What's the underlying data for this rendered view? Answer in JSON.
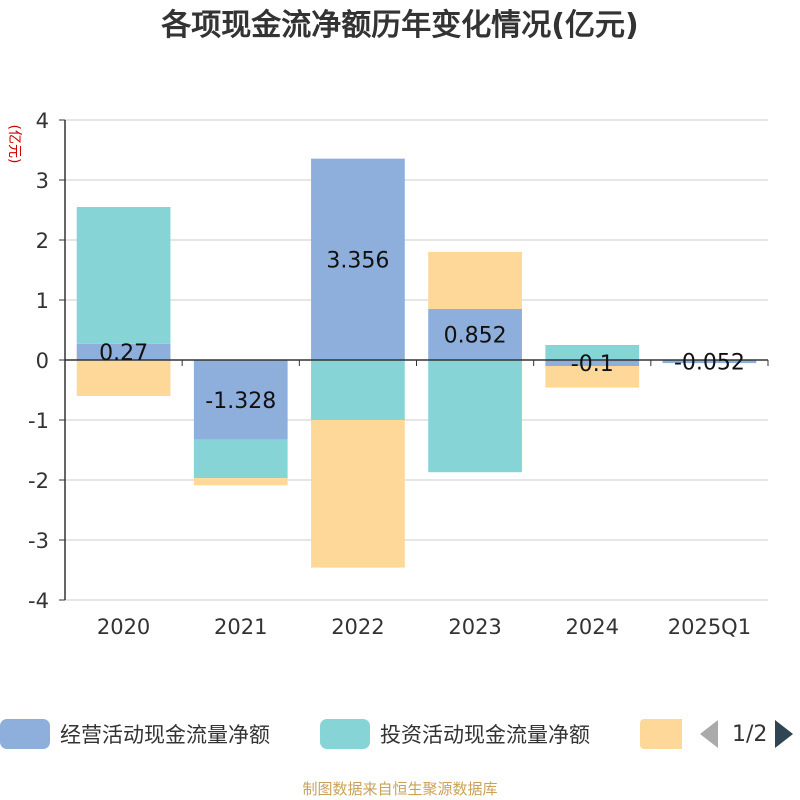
{
  "title": "各项现金流净额历年变化情况(亿元)",
  "source": "制图数据来自恒生聚源数据库",
  "colors": {
    "operating": "#8eaedb",
    "investing": "#86d4d6",
    "financing": "#fdd898"
  },
  "chart_data": {
    "type": "bar",
    "stacked": true,
    "title": "各项现金流净额历年变化情况(亿元)",
    "ylabel": "(亿元)",
    "ylim": [
      -4,
      4
    ],
    "yticks": [
      "4",
      "3",
      "2",
      "1",
      "0",
      "-1",
      "-2",
      "-3",
      "-4"
    ],
    "categories": [
      "2020",
      "2021",
      "2022",
      "2023",
      "2024",
      "2025Q1"
    ],
    "grid": true,
    "legend_position": "bottom",
    "series": [
      {
        "name": "经营活动现金流量净额",
        "values": [
          0.27,
          -1.328,
          3.356,
          0.852,
          -0.1,
          -0.052
        ],
        "labels": [
          "0.27",
          "-1.328",
          "3.356",
          "0.852",
          "-0.1",
          "-0.052"
        ]
      },
      {
        "name": "投资活动现金流量净额",
        "values": [
          2.28,
          -0.64,
          -1.0,
          -1.87,
          0.25,
          0.0
        ]
      },
      {
        "name": "",
        "values": [
          -0.6,
          -0.12,
          -2.46,
          0.95,
          -0.36,
          0.0
        ]
      }
    ]
  },
  "legend": {
    "items": [
      "经营活动现金流量净额",
      "投资活动现金流量净额",
      ""
    ],
    "page": "1/2"
  }
}
